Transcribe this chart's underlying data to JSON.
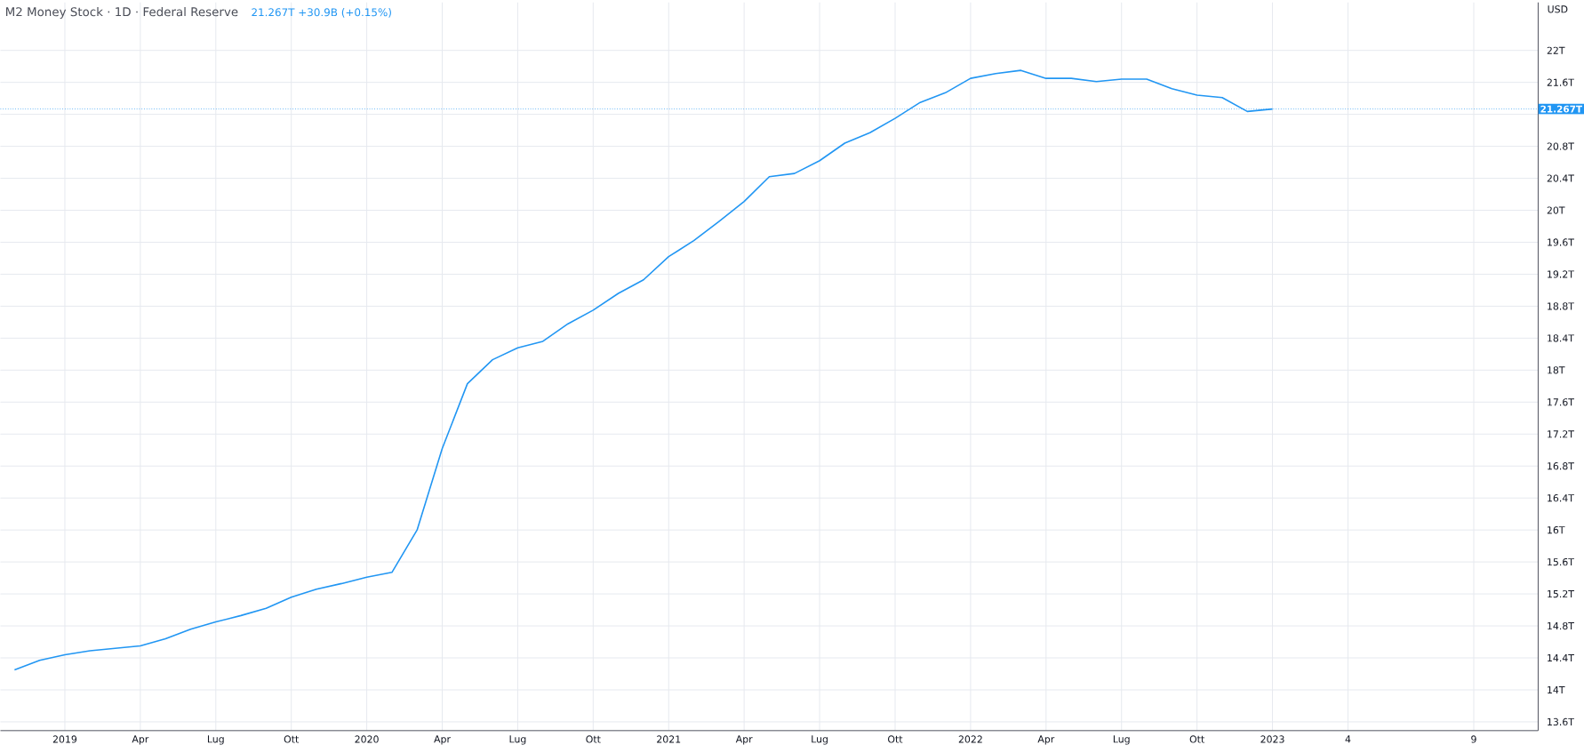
{
  "chart_data": {
    "type": "line",
    "title": "M2 Money Stock · 1D · Federal Reserve",
    "subtitle": "21.267T +30.9B (+0.15%)",
    "ylabel": "USD",
    "categories": [
      null,
      null,
      "2019",
      null,
      null,
      "Apr",
      null,
      null,
      "Lug",
      null,
      null,
      "Ott",
      null,
      null,
      "2020",
      null,
      null,
      "Apr",
      null,
      null,
      "Lug",
      null,
      null,
      "Ott",
      null,
      null,
      "2021",
      null,
      null,
      "Apr",
      null,
      null,
      "Lug",
      null,
      null,
      "Ott",
      null,
      null,
      "2022",
      null,
      null,
      "Apr",
      null,
      null,
      "Lug",
      null,
      null,
      "Ott",
      null,
      null,
      "2023",
      null,
      null,
      "4",
      null,
      null,
      null,
      null,
      "9",
      null,
      null
    ],
    "values": [
      14.25,
      14.37,
      14.44,
      14.49,
      14.52,
      14.55,
      14.64,
      14.76,
      14.85,
      14.93,
      15.02,
      15.16,
      15.26,
      15.33,
      15.41,
      15.47,
      16.0,
      17.02,
      17.83,
      18.13,
      18.28,
      18.36,
      18.58,
      18.75,
      18.96,
      19.13,
      19.42,
      19.62,
      19.86,
      20.11,
      20.42,
      20.46,
      20.62,
      20.84,
      20.97,
      21.15,
      21.35,
      21.47,
      21.65,
      21.71,
      21.75,
      21.65,
      21.65,
      21.61,
      21.64,
      21.64,
      21.52,
      21.44,
      21.41,
      21.236,
      21.267,
      null,
      null,
      null,
      null,
      null,
      null,
      null,
      null,
      null,
      null
    ],
    "color": "#2196f3",
    "ylim": [
      13.49,
      22.6
    ],
    "yticks": [
      {
        "value": 13.6,
        "label": "13.6T"
      },
      {
        "value": 14,
        "label": "14T"
      },
      {
        "value": 14.4,
        "label": "14.4T"
      },
      {
        "value": 14.8,
        "label": "14.8T"
      },
      {
        "value": 15.2,
        "label": "15.2T"
      },
      {
        "value": 15.6,
        "label": "15.6T"
      },
      {
        "value": 16,
        "label": "16T"
      },
      {
        "value": 16.4,
        "label": "16.4T"
      },
      {
        "value": 16.8,
        "label": "16.8T"
      },
      {
        "value": 17.2,
        "label": "17.2T"
      },
      {
        "value": 17.6,
        "label": "17.6T"
      },
      {
        "value": 18,
        "label": "18T"
      },
      {
        "value": 18.4,
        "label": "18.4T"
      },
      {
        "value": 18.8,
        "label": "18.8T"
      },
      {
        "value": 19.2,
        "label": "19.2T"
      },
      {
        "value": 19.6,
        "label": "19.6T"
      },
      {
        "value": 20,
        "label": "20T"
      },
      {
        "value": 20.4,
        "label": "20.4T"
      },
      {
        "value": 20.8,
        "label": "20.8T"
      },
      {
        "value": 21.2,
        "label": null
      },
      {
        "value": 21.6,
        "label": "21.6T"
      },
      {
        "value": 22,
        "label": "22T"
      }
    ],
    "grid": true,
    "ref_lines": [
      {
        "axis": "y",
        "value": 21.267,
        "label": "21.267T",
        "color": "#2196f3",
        "line_style": "dotted"
      }
    ]
  }
}
